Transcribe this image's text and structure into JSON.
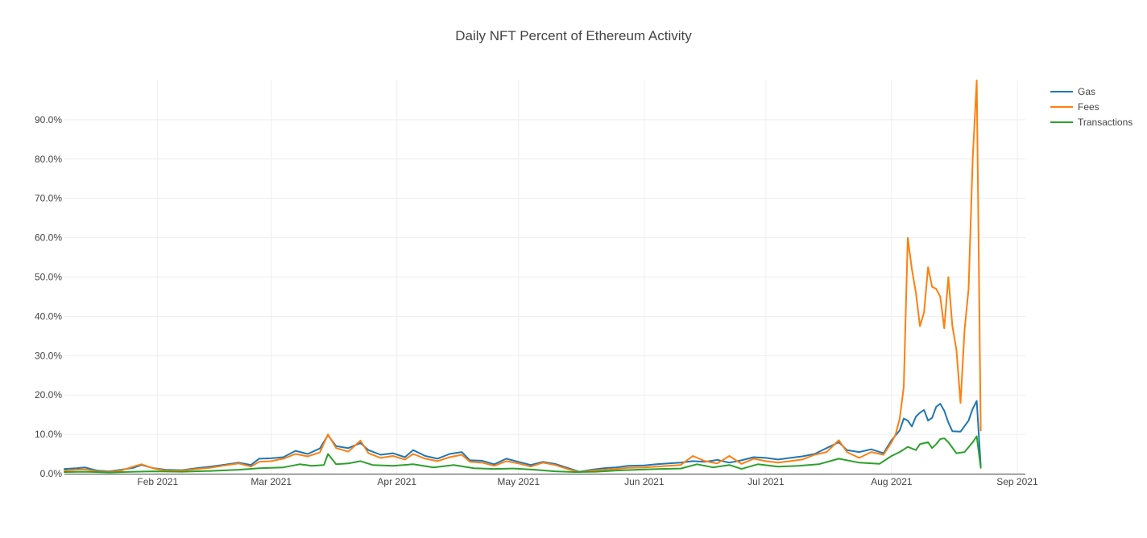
{
  "chart_data": {
    "type": "line",
    "title": "Daily NFT Percent of Ethereum Activity",
    "xlabel": "",
    "ylabel": "",
    "x_range": [
      "2021-01-09",
      "2021-09-03"
    ],
    "y_range": [
      0,
      100
    ],
    "y_ticks": [
      {
        "value": 0,
        "label": "0.0%"
      },
      {
        "value": 10,
        "label": "10.0%"
      },
      {
        "value": 20,
        "label": "20.0%"
      },
      {
        "value": 30,
        "label": "30.0%"
      },
      {
        "value": 40,
        "label": "40.0%"
      },
      {
        "value": 50,
        "label": "50.0%"
      },
      {
        "value": 60,
        "label": "60.0%"
      },
      {
        "value": 70,
        "label": "70.0%"
      },
      {
        "value": 80,
        "label": "80.0%"
      },
      {
        "value": 90,
        "label": "90.0%"
      }
    ],
    "x_ticks": [
      {
        "value": "2021-02-01",
        "label": "Feb 2021"
      },
      {
        "value": "2021-03-01",
        "label": "Mar 2021"
      },
      {
        "value": "2021-04-01",
        "label": "Apr 2021"
      },
      {
        "value": "2021-05-01",
        "label": "May 2021"
      },
      {
        "value": "2021-06-01",
        "label": "Jun 2021"
      },
      {
        "value": "2021-07-01",
        "label": "Jul 2021"
      },
      {
        "value": "2021-08-01",
        "label": "Aug 2021"
      },
      {
        "value": "2021-09-01",
        "label": "Sep 2021"
      }
    ],
    "grid": true,
    "legend_position": "top-right",
    "series": [
      {
        "name": "Gas",
        "color": "#1f77b4",
        "points": [
          [
            "2021-01-09",
            1.2
          ],
          [
            "2021-01-12",
            1.4
          ],
          [
            "2021-01-14",
            1.6
          ],
          [
            "2021-01-17",
            0.8
          ],
          [
            "2021-01-20",
            0.6
          ],
          [
            "2021-01-23",
            1.0
          ],
          [
            "2021-01-26",
            1.5
          ],
          [
            "2021-01-28",
            2.2
          ],
          [
            "2021-01-31",
            1.4
          ],
          [
            "2021-02-03",
            1.0
          ],
          [
            "2021-02-07",
            0.9
          ],
          [
            "2021-02-10",
            1.3
          ],
          [
            "2021-02-14",
            1.8
          ],
          [
            "2021-02-17",
            2.2
          ],
          [
            "2021-02-21",
            2.8
          ],
          [
            "2021-02-24",
            2.2
          ],
          [
            "2021-02-26",
            3.8
          ],
          [
            "2021-03-01",
            3.9
          ],
          [
            "2021-03-04",
            4.2
          ],
          [
            "2021-03-07",
            5.8
          ],
          [
            "2021-03-10",
            5.0
          ],
          [
            "2021-03-13",
            6.4
          ],
          [
            "2021-03-15",
            9.8
          ],
          [
            "2021-03-17",
            7.0
          ],
          [
            "2021-03-20",
            6.5
          ],
          [
            "2021-03-23",
            7.8
          ],
          [
            "2021-03-25",
            6.0
          ],
          [
            "2021-03-28",
            4.8
          ],
          [
            "2021-03-31",
            5.2
          ],
          [
            "2021-04-03",
            4.2
          ],
          [
            "2021-04-05",
            6.0
          ],
          [
            "2021-04-08",
            4.5
          ],
          [
            "2021-04-11",
            3.8
          ],
          [
            "2021-04-14",
            5.0
          ],
          [
            "2021-04-17",
            5.5
          ],
          [
            "2021-04-19",
            3.4
          ],
          [
            "2021-04-22",
            3.3
          ],
          [
            "2021-04-25",
            2.4
          ],
          [
            "2021-04-28",
            3.8
          ],
          [
            "2021-05-01",
            3.0
          ],
          [
            "2021-05-04",
            2.2
          ],
          [
            "2021-05-07",
            3.0
          ],
          [
            "2021-05-10",
            2.5
          ],
          [
            "2021-05-13",
            1.5
          ],
          [
            "2021-05-16",
            0.5
          ],
          [
            "2021-05-19",
            1.0
          ],
          [
            "2021-05-22",
            1.4
          ],
          [
            "2021-05-25",
            1.6
          ],
          [
            "2021-05-28",
            2.0
          ],
          [
            "2021-06-01",
            2.1
          ],
          [
            "2021-06-04",
            2.4
          ],
          [
            "2021-06-07",
            2.6
          ],
          [
            "2021-06-10",
            2.8
          ],
          [
            "2021-06-13",
            3.2
          ],
          [
            "2021-06-16",
            3.0
          ],
          [
            "2021-06-19",
            3.5
          ],
          [
            "2021-06-22",
            2.8
          ],
          [
            "2021-06-25",
            3.4
          ],
          [
            "2021-06-28",
            4.2
          ],
          [
            "2021-07-01",
            4.0
          ],
          [
            "2021-07-04",
            3.6
          ],
          [
            "2021-07-07",
            4.0
          ],
          [
            "2021-07-10",
            4.4
          ],
          [
            "2021-07-13",
            5.0
          ],
          [
            "2021-07-16",
            6.5
          ],
          [
            "2021-07-19",
            8.0
          ],
          [
            "2021-07-21",
            6.0
          ],
          [
            "2021-07-24",
            5.5
          ],
          [
            "2021-07-27",
            6.2
          ],
          [
            "2021-07-30",
            5.2
          ],
          [
            "2021-08-01",
            8.5
          ],
          [
            "2021-08-03",
            11.0
          ],
          [
            "2021-08-04",
            14.0
          ],
          [
            "2021-08-05",
            13.5
          ],
          [
            "2021-08-06",
            12.0
          ],
          [
            "2021-08-07",
            14.5
          ],
          [
            "2021-08-08",
            15.5
          ],
          [
            "2021-08-09",
            16.2
          ],
          [
            "2021-08-10",
            13.5
          ],
          [
            "2021-08-11",
            14.2
          ],
          [
            "2021-08-12",
            17.0
          ],
          [
            "2021-08-13",
            17.8
          ],
          [
            "2021-08-14",
            16.0
          ],
          [
            "2021-08-15",
            13.0
          ],
          [
            "2021-08-16",
            10.8
          ],
          [
            "2021-08-18",
            10.7
          ],
          [
            "2021-08-20",
            13.5
          ],
          [
            "2021-08-21",
            16.5
          ],
          [
            "2021-08-22",
            18.5
          ],
          [
            "2021-08-23",
            1.8
          ]
        ]
      },
      {
        "name": "Fees",
        "color": "#ff7f0e",
        "points": [
          [
            "2021-01-09",
            0.8
          ],
          [
            "2021-01-12",
            1.0
          ],
          [
            "2021-01-14",
            1.1
          ],
          [
            "2021-01-17",
            0.6
          ],
          [
            "2021-01-20",
            0.5
          ],
          [
            "2021-01-23",
            0.8
          ],
          [
            "2021-01-26",
            1.8
          ],
          [
            "2021-01-28",
            2.4
          ],
          [
            "2021-01-31",
            1.3
          ],
          [
            "2021-02-03",
            0.8
          ],
          [
            "2021-02-07",
            0.8
          ],
          [
            "2021-02-10",
            1.1
          ],
          [
            "2021-02-14",
            1.5
          ],
          [
            "2021-02-17",
            2.0
          ],
          [
            "2021-02-21",
            2.6
          ],
          [
            "2021-02-24",
            1.8
          ],
          [
            "2021-02-26",
            3.0
          ],
          [
            "2021-03-01",
            3.2
          ],
          [
            "2021-03-04",
            3.8
          ],
          [
            "2021-03-07",
            5.0
          ],
          [
            "2021-03-10",
            4.4
          ],
          [
            "2021-03-13",
            5.4
          ],
          [
            "2021-03-15",
            10.0
          ],
          [
            "2021-03-17",
            6.5
          ],
          [
            "2021-03-20",
            5.6
          ],
          [
            "2021-03-23",
            8.4
          ],
          [
            "2021-03-25",
            5.2
          ],
          [
            "2021-03-28",
            4.0
          ],
          [
            "2021-03-31",
            4.5
          ],
          [
            "2021-04-03",
            3.6
          ],
          [
            "2021-04-05",
            5.0
          ],
          [
            "2021-04-08",
            3.8
          ],
          [
            "2021-04-11",
            3.2
          ],
          [
            "2021-04-14",
            4.2
          ],
          [
            "2021-04-17",
            4.8
          ],
          [
            "2021-04-19",
            3.0
          ],
          [
            "2021-04-22",
            2.8
          ],
          [
            "2021-04-25",
            2.0
          ],
          [
            "2021-04-28",
            3.2
          ],
          [
            "2021-05-01",
            2.6
          ],
          [
            "2021-05-04",
            1.8
          ],
          [
            "2021-05-07",
            2.8
          ],
          [
            "2021-05-10",
            2.2
          ],
          [
            "2021-05-13",
            1.2
          ],
          [
            "2021-05-16",
            0.4
          ],
          [
            "2021-05-19",
            0.8
          ],
          [
            "2021-05-22",
            1.0
          ],
          [
            "2021-05-25",
            1.2
          ],
          [
            "2021-05-28",
            1.5
          ],
          [
            "2021-06-01",
            1.6
          ],
          [
            "2021-06-04",
            1.8
          ],
          [
            "2021-06-07",
            2.0
          ],
          [
            "2021-06-10",
            2.2
          ],
          [
            "2021-06-13",
            4.5
          ],
          [
            "2021-06-16",
            3.2
          ],
          [
            "2021-06-19",
            2.6
          ],
          [
            "2021-06-22",
            4.5
          ],
          [
            "2021-06-25",
            2.5
          ],
          [
            "2021-06-28",
            3.8
          ],
          [
            "2021-07-01",
            3.2
          ],
          [
            "2021-07-04",
            2.8
          ],
          [
            "2021-07-07",
            3.2
          ],
          [
            "2021-07-10",
            3.6
          ],
          [
            "2021-07-13",
            4.8
          ],
          [
            "2021-07-16",
            5.5
          ],
          [
            "2021-07-19",
            8.5
          ],
          [
            "2021-07-21",
            5.5
          ],
          [
            "2021-07-24",
            4.0
          ],
          [
            "2021-07-27",
            5.5
          ],
          [
            "2021-07-30",
            4.8
          ],
          [
            "2021-08-01",
            8.0
          ],
          [
            "2021-08-02",
            10.0
          ],
          [
            "2021-08-03",
            14.0
          ],
          [
            "2021-08-04",
            22.0
          ],
          [
            "2021-08-05",
            60.0
          ],
          [
            "2021-08-06",
            52.0
          ],
          [
            "2021-08-07",
            46.0
          ],
          [
            "2021-08-08",
            37.5
          ],
          [
            "2021-08-09",
            41.0
          ],
          [
            "2021-08-10",
            52.5
          ],
          [
            "2021-08-11",
            47.5
          ],
          [
            "2021-08-12",
            47.0
          ],
          [
            "2021-08-13",
            45.0
          ],
          [
            "2021-08-14",
            37.0
          ],
          [
            "2021-08-15",
            50.0
          ],
          [
            "2021-08-16",
            37.5
          ],
          [
            "2021-08-17",
            31.5
          ],
          [
            "2021-08-18",
            18.0
          ],
          [
            "2021-08-19",
            36.5
          ],
          [
            "2021-08-20",
            47.0
          ],
          [
            "2021-08-21",
            80.0
          ],
          [
            "2021-08-22",
            100.0
          ],
          [
            "2021-08-23",
            11.0
          ]
        ]
      },
      {
        "name": "Transactions",
        "color": "#2ca02c",
        "points": [
          [
            "2021-01-09",
            0.4
          ],
          [
            "2021-01-14",
            0.5
          ],
          [
            "2021-01-20",
            0.3
          ],
          [
            "2021-01-26",
            0.5
          ],
          [
            "2021-01-31",
            0.6
          ],
          [
            "2021-02-07",
            0.5
          ],
          [
            "2021-02-14",
            0.7
          ],
          [
            "2021-02-21",
            1.0
          ],
          [
            "2021-02-26",
            1.4
          ],
          [
            "2021-03-04",
            1.6
          ],
          [
            "2021-03-08",
            2.4
          ],
          [
            "2021-03-11",
            2.0
          ],
          [
            "2021-03-14",
            2.2
          ],
          [
            "2021-03-15",
            5.0
          ],
          [
            "2021-03-17",
            2.4
          ],
          [
            "2021-03-20",
            2.6
          ],
          [
            "2021-03-23",
            3.2
          ],
          [
            "2021-03-26",
            2.2
          ],
          [
            "2021-03-31",
            2.0
          ],
          [
            "2021-04-05",
            2.4
          ],
          [
            "2021-04-10",
            1.6
          ],
          [
            "2021-04-15",
            2.2
          ],
          [
            "2021-04-20",
            1.4
          ],
          [
            "2021-04-25",
            1.2
          ],
          [
            "2021-04-30",
            1.3
          ],
          [
            "2021-05-05",
            1.0
          ],
          [
            "2021-05-10",
            0.6
          ],
          [
            "2021-05-15",
            0.4
          ],
          [
            "2021-05-20",
            0.5
          ],
          [
            "2021-05-25",
            0.8
          ],
          [
            "2021-05-30",
            1.0
          ],
          [
            "2021-06-05",
            1.2
          ],
          [
            "2021-06-10",
            1.3
          ],
          [
            "2021-06-14",
            2.4
          ],
          [
            "2021-06-18",
            1.6
          ],
          [
            "2021-06-22",
            2.2
          ],
          [
            "2021-06-25",
            1.2
          ],
          [
            "2021-06-29",
            2.4
          ],
          [
            "2021-07-04",
            1.8
          ],
          [
            "2021-07-09",
            2.0
          ],
          [
            "2021-07-14",
            2.4
          ],
          [
            "2021-07-19",
            3.8
          ],
          [
            "2021-07-24",
            2.8
          ],
          [
            "2021-07-29",
            2.5
          ],
          [
            "2021-08-01",
            4.5
          ],
          [
            "2021-08-03",
            5.5
          ],
          [
            "2021-08-05",
            6.8
          ],
          [
            "2021-08-07",
            6.0
          ],
          [
            "2021-08-08",
            7.5
          ],
          [
            "2021-08-10",
            8.0
          ],
          [
            "2021-08-11",
            6.5
          ],
          [
            "2021-08-12",
            7.5
          ],
          [
            "2021-08-13",
            8.8
          ],
          [
            "2021-08-14",
            9.0
          ],
          [
            "2021-08-15",
            8.0
          ],
          [
            "2021-08-17",
            5.2
          ],
          [
            "2021-08-19",
            5.5
          ],
          [
            "2021-08-21",
            8.0
          ],
          [
            "2021-08-22",
            9.5
          ],
          [
            "2021-08-23",
            1.5
          ]
        ]
      }
    ]
  }
}
